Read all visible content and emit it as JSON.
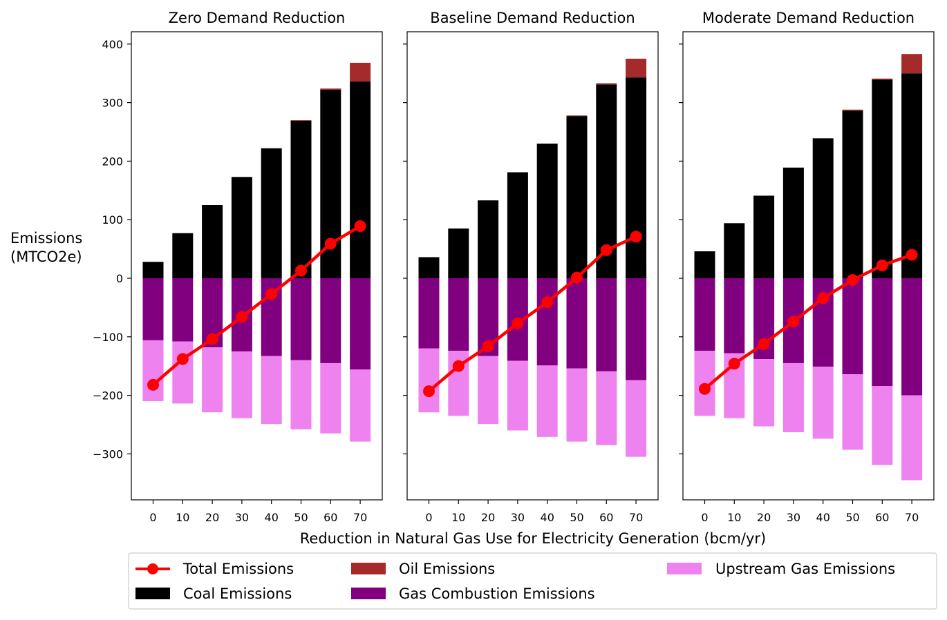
{
  "chart_data": {
    "type": "bar",
    "xlabel": "Reduction in Natural Gas Use for Electricity Generation (bcm/yr)",
    "ylabel_lines": [
      "Emissions",
      "(MTCO2e)"
    ],
    "categories": [
      "0",
      "10",
      "20",
      "30",
      "40",
      "50",
      "60",
      "70"
    ],
    "yticks": [
      "400",
      "300",
      "200",
      "100",
      "0",
      "−100",
      "−200",
      "−300"
    ],
    "ylim": [
      -380,
      420
    ],
    "colors": {
      "coal": "#000000",
      "oil": "#a52a2a",
      "gas": "#800080",
      "upstream": "#ee82ee",
      "total": "#ff0000"
    },
    "legend": {
      "total": "Total Emissions",
      "coal": "Coal Emissions",
      "oil": "Oil Emissions",
      "gas": "Gas Combustion Emissions",
      "upstream": "Upstream Gas Emissions",
      "placement": "below"
    },
    "panels": [
      {
        "title": "Zero Demand Reduction",
        "coal": [
          28,
          77,
          125,
          173,
          222,
          269,
          322,
          336
        ],
        "oil": [
          0,
          0,
          0,
          0,
          0,
          1,
          2,
          32
        ],
        "gas": [
          -106,
          -108,
          -118,
          -125,
          -133,
          -140,
          -145,
          -156
        ],
        "upstream": [
          -104,
          -106,
          -111,
          -114,
          -116,
          -118,
          -120,
          -123
        ],
        "total": [
          -182,
          -138,
          -104,
          -66,
          -27,
          13,
          59,
          89
        ]
      },
      {
        "title": "Baseline Demand Reduction",
        "coal": [
          36,
          85,
          133,
          181,
          230,
          277,
          331,
          343
        ],
        "oil": [
          0,
          0,
          0,
          0,
          0,
          1,
          2,
          32
        ],
        "gas": [
          -120,
          -124,
          -133,
          -141,
          -149,
          -154,
          -159,
          -174
        ],
        "upstream": [
          -109,
          -111,
          -116,
          -119,
          -122,
          -125,
          -126,
          -131
        ],
        "total": [
          -193,
          -150,
          -116,
          -77,
          -41,
          1,
          48,
          71
        ]
      },
      {
        "title": "Moderate Demand Reduction",
        "coal": [
          46,
          94,
          141,
          189,
          239,
          286,
          339,
          350
        ],
        "oil": [
          0,
          0,
          0,
          0,
          0,
          2,
          2,
          33
        ],
        "gas": [
          -124,
          -128,
          -138,
          -145,
          -151,
          -164,
          -184,
          -200
        ],
        "upstream": [
          -111,
          -111,
          -115,
          -118,
          -123,
          -129,
          -135,
          -145
        ],
        "total": [
          -189,
          -146,
          -112,
          -74,
          -34,
          -3,
          22,
          40
        ]
      }
    ]
  }
}
